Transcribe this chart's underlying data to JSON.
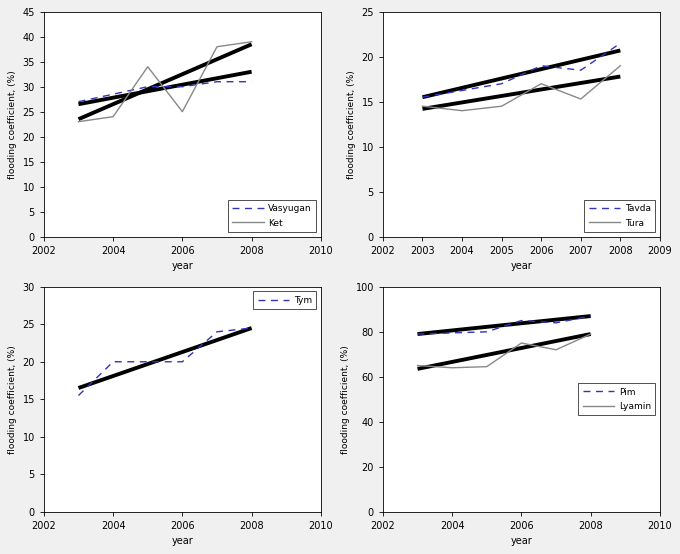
{
  "subplots": [
    {
      "xlabel": "year",
      "ylabel": "flooding coefficient, (%)",
      "xlim": [
        2002,
        2010
      ],
      "ylim": [
        0,
        45
      ],
      "xticks": [
        2002,
        2004,
        2006,
        2008,
        2010
      ],
      "yticks": [
        0,
        5,
        10,
        15,
        20,
        25,
        30,
        35,
        40,
        45
      ],
      "series": [
        {
          "label": "Vasyugan",
          "x": [
            2003,
            2005,
            2006,
            2007,
            2008
          ],
          "y": [
            27,
            30,
            30,
            31,
            31
          ],
          "color": "#3333bb",
          "linestyle": "dashed",
          "linewidth": 1.0
        },
        {
          "label": "Ket",
          "x": [
            2003,
            2004,
            2005,
            2006,
            2007,
            2008
          ],
          "y": [
            23,
            24,
            34,
            25,
            38,
            39
          ],
          "color": "#888888",
          "linestyle": "solid",
          "linewidth": 1.0
        }
      ],
      "trends": [
        {
          "x": [
            2003,
            2008
          ],
          "y": [
            26.5,
            33.0
          ],
          "linewidth": 2.8
        },
        {
          "x": [
            2003,
            2008
          ],
          "y": [
            23.5,
            38.5
          ],
          "linewidth": 2.8
        }
      ],
      "legend_loc": "lower right"
    },
    {
      "xlabel": "year",
      "ylabel": "flooding coefficient, (%)",
      "xlim": [
        2002,
        2009
      ],
      "ylim": [
        0,
        25
      ],
      "xticks": [
        2002,
        2003,
        2004,
        2005,
        2006,
        2007,
        2008,
        2009
      ],
      "yticks": [
        0,
        5,
        10,
        15,
        20,
        25
      ],
      "series": [
        {
          "label": "Tavda",
          "x": [
            2003,
            2005,
            2006,
            2007,
            2008
          ],
          "y": [
            15.5,
            17.0,
            19.0,
            18.5,
            21.5
          ],
          "color": "#3333bb",
          "linestyle": "dashed",
          "linewidth": 1.0
        },
        {
          "label": "Tura",
          "x": [
            2003,
            2004,
            2005,
            2006,
            2007,
            2008
          ],
          "y": [
            14.5,
            14.0,
            14.5,
            17.0,
            15.3,
            19.0
          ],
          "color": "#888888",
          "linestyle": "solid",
          "linewidth": 1.0
        }
      ],
      "trends": [
        {
          "x": [
            2003,
            2008
          ],
          "y": [
            15.5,
            20.7
          ],
          "linewidth": 2.8
        },
        {
          "x": [
            2003,
            2008
          ],
          "y": [
            14.2,
            17.8
          ],
          "linewidth": 2.8
        }
      ],
      "legend_loc": "lower right"
    },
    {
      "xlabel": "year",
      "ylabel": "flooding coefficient, (%)",
      "xlim": [
        2002,
        2010
      ],
      "ylim": [
        0,
        30
      ],
      "xticks": [
        2002,
        2004,
        2006,
        2008,
        2010
      ],
      "yticks": [
        0,
        5,
        10,
        15,
        20,
        25,
        30
      ],
      "series": [
        {
          "label": "Tym",
          "x": [
            2003,
            2004,
            2005,
            2006,
            2007,
            2008
          ],
          "y": [
            15.5,
            20.0,
            20.0,
            20.0,
            24.0,
            24.5
          ],
          "color": "#3333bb",
          "linestyle": "dashed",
          "linewidth": 1.0
        }
      ],
      "trends": [
        {
          "x": [
            2003,
            2008
          ],
          "y": [
            16.5,
            24.5
          ],
          "linewidth": 2.8
        }
      ],
      "legend_loc": "upper right"
    },
    {
      "xlabel": "year",
      "ylabel": "flooding coefficient, (%)",
      "xlim": [
        2002,
        2010
      ],
      "ylim": [
        0,
        100
      ],
      "xticks": [
        2002,
        2004,
        2006,
        2008,
        2010
      ],
      "yticks": [
        0,
        20,
        40,
        60,
        80,
        100
      ],
      "series": [
        {
          "label": "Pim",
          "x": [
            2003,
            2004,
            2005,
            2006,
            2007,
            2008
          ],
          "y": [
            79.0,
            79.5,
            80.0,
            85.0,
            84.0,
            87.0
          ],
          "color": "#3333bb",
          "linestyle": "dashed",
          "linewidth": 1.0
        },
        {
          "label": "Lyamin",
          "x": [
            2003,
            2004,
            2005,
            2006,
            2007,
            2008
          ],
          "y": [
            65.0,
            64.0,
            64.5,
            75.0,
            72.0,
            79.0
          ],
          "color": "#888888",
          "linestyle": "solid",
          "linewidth": 1.0
        }
      ],
      "trends": [
        {
          "x": [
            2003,
            2008
          ],
          "y": [
            79.0,
            87.0
          ],
          "linewidth": 2.8
        },
        {
          "x": [
            2003,
            2008
          ],
          "y": [
            63.5,
            79.0
          ],
          "linewidth": 2.8
        }
      ],
      "legend_loc": "center right"
    }
  ],
  "figure_bg": "#f0f0f0",
  "plot_bg": "white"
}
